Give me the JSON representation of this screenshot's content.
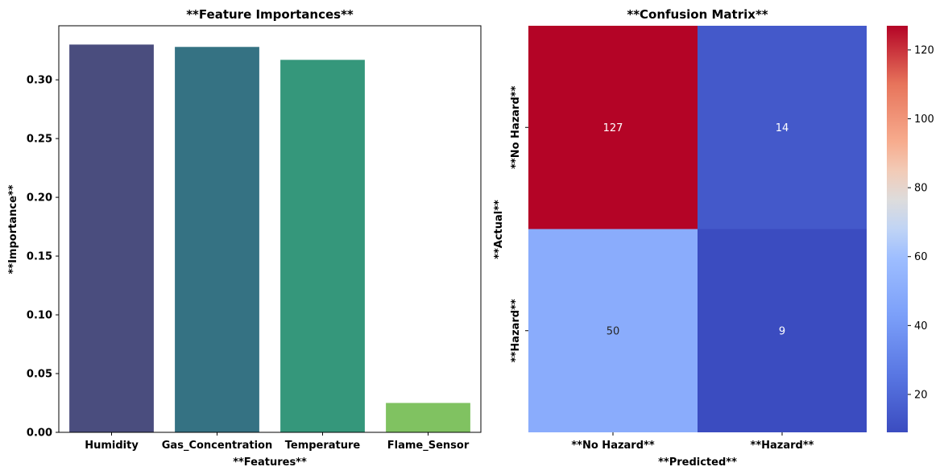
{
  "chart_data": [
    {
      "type": "bar",
      "title": "**Feature Importances**",
      "xlabel": "**Features**",
      "ylabel": "**Importance**",
      "categories": [
        "Humidity",
        "Gas_Concentration",
        "Temperature",
        "Flame_Sensor"
      ],
      "values": [
        0.33,
        0.328,
        0.317,
        0.025
      ],
      "colors": [
        "#4a4d7e",
        "#357283",
        "#35977b",
        "#80c261"
      ],
      "ylim": [
        0,
        0.346
      ],
      "yticks": [
        "0.00",
        "0.05",
        "0.10",
        "0.15",
        "0.20",
        "0.25",
        "0.30"
      ],
      "grid": false
    },
    {
      "type": "heatmap",
      "title": "**Confusion Matrix**",
      "xlabel": "**Predicted**",
      "ylabel": "**Actual**",
      "x_categories": [
        "**No Hazard**",
        "**Hazard**"
      ],
      "y_categories": [
        "**No Hazard**",
        "**Hazard**"
      ],
      "values": [
        [
          127,
          14
        ],
        [
          50,
          9
        ]
      ],
      "colormap": "coolwarm",
      "colorbar": {
        "range": [
          9,
          127
        ],
        "ticks": [
          "20",
          "40",
          "60",
          "80",
          "100",
          "120"
        ]
      }
    }
  ]
}
